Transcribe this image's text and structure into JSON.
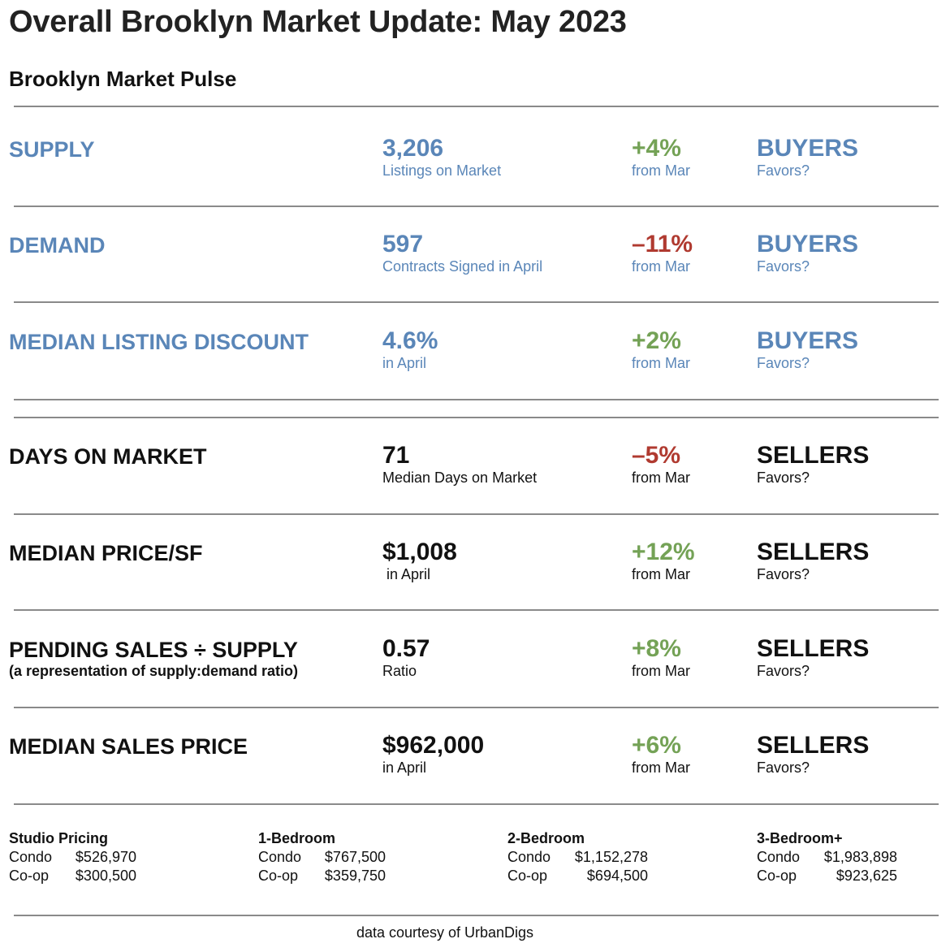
{
  "title": "Overall Brooklyn Market Update: May 2023",
  "subtitle": "Brooklyn Market Pulse",
  "metrics": [
    {
      "label": "SUPPLY",
      "sublabel": "",
      "value": "3,206",
      "caption": "Listings on Market",
      "change": "+4%",
      "change_caption": "from Mar",
      "favors": "BUYERS",
      "favors_caption": "Favors?",
      "label_color": "#5a86b8",
      "change_color": "#74a256"
    },
    {
      "label": "DEMAND",
      "sublabel": "",
      "value": "597",
      "caption": "Contracts Signed in April",
      "change": "–11%",
      "change_caption": "from Mar",
      "favors": "BUYERS",
      "favors_caption": "Favors?",
      "label_color": "#5a86b8",
      "change_color": "#b03a30"
    },
    {
      "label": "MEDIAN LISTING DISCOUNT",
      "sublabel": "",
      "value": "4.6%",
      "caption": "in April",
      "change": "+2%",
      "change_caption": "from Mar",
      "favors": "BUYERS",
      "favors_caption": "Favors?",
      "label_color": "#5a86b8",
      "change_color": "#74a256"
    },
    {
      "label": "DAYS ON MARKET",
      "sublabel": "",
      "value": "71",
      "caption": "Median Days on Market",
      "change": "–5%",
      "change_caption": "from Mar",
      "favors": "SELLERS",
      "favors_caption": "Favors?",
      "label_color": "#111111",
      "change_color": "#b03a30"
    },
    {
      "label": "MEDIAN PRICE/SF",
      "sublabel": "",
      "value": "$1,008",
      "caption": " in April",
      "change": "+12%",
      "change_caption": "from Mar",
      "favors": "SELLERS",
      "favors_caption": "Favors?",
      "label_color": "#111111",
      "change_color": "#74a256"
    },
    {
      "label": "PENDING SALES ÷ SUPPLY",
      "sublabel": "(a representation of supply:demand ratio)",
      "value": "0.57",
      "caption": "Ratio",
      "change": "+8%",
      "change_caption": "from Mar",
      "favors": "SELLERS",
      "favors_caption": "Favors?",
      "label_color": "#111111",
      "change_color": "#74a256"
    },
    {
      "label": "MEDIAN SALES PRICE",
      "sublabel": "",
      "value": "$962,000",
      "caption": "in April",
      "change": "+6%",
      "change_caption": "from Mar",
      "favors": "SELLERS",
      "favors_caption": "Favors?",
      "label_color": "#111111",
      "change_color": "#74a256"
    }
  ],
  "pricing": [
    {
      "title": "Studio Pricing",
      "condo_label": "Condo",
      "condo_price": "$526,970",
      "coop_label": "Co-op",
      "coop_price": "$300,500"
    },
    {
      "title": "1-Bedroom",
      "condo_label": "Condo",
      "condo_price": "$767,500",
      "coop_label": "Co-op",
      "coop_price": "$359,750"
    },
    {
      "title": "2-Bedroom",
      "condo_label": "Condo",
      "condo_price": "$1,152,278",
      "coop_label": "Co-op",
      "coop_price": "$694,500"
    },
    {
      "title": "3-Bedroom+",
      "condo_label": "Condo",
      "condo_price": "$1,983,898",
      "coop_label": "Co-op",
      "coop_price": "$923,625"
    }
  ],
  "footer": "data courtesy of UrbanDigs"
}
